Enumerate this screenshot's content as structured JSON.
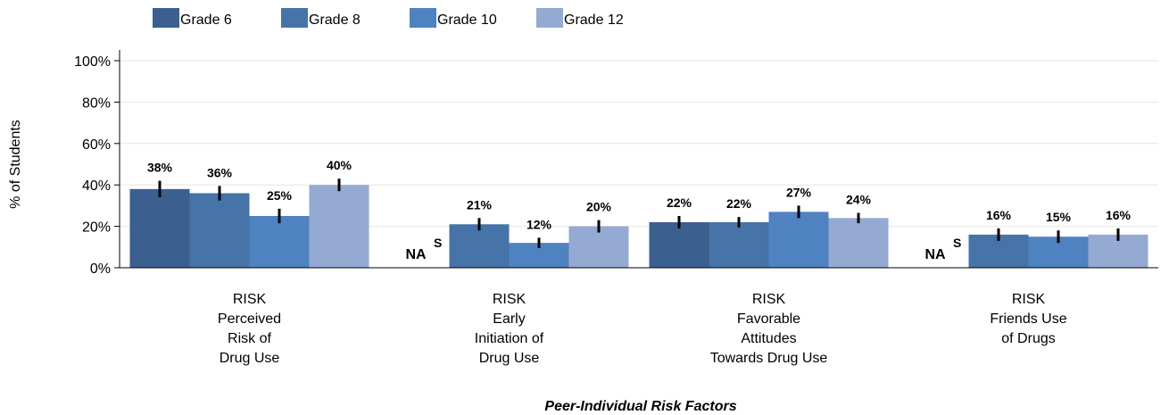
{
  "chart_data": {
    "type": "bar",
    "categories": [
      [
        "RISK",
        "Perceived",
        "Risk of",
        "Drug Use"
      ],
      [
        "RISK",
        "Early",
        "Initiation of",
        "Drug Use"
      ],
      [
        "RISK",
        "Favorable",
        "Attitudes",
        "Towards Drug Use"
      ],
      [
        "RISK",
        "Friends Use",
        "of Drugs"
      ]
    ],
    "series": [
      {
        "name": "Grade 6",
        "color": "#3b5f8f",
        "values": [
          38,
          null,
          22,
          null
        ],
        "errors": [
          4,
          null,
          3,
          null
        ],
        "labels": [
          "38%",
          "NA",
          "22%",
          "NA"
        ]
      },
      {
        "name": "Grade 8",
        "color": "#4673a8",
        "values": [
          36,
          21,
          22,
          16
        ],
        "errors": [
          3.5,
          3,
          2.5,
          3
        ],
        "labels": [
          "36%",
          "21%",
          "22%",
          "16%"
        ]
      },
      {
        "name": "Grade 10",
        "color": "#4f82c0",
        "values": [
          25,
          12,
          27,
          15
        ],
        "errors": [
          3.5,
          2.5,
          3,
          3
        ],
        "labels": [
          "25%",
          "12%",
          "27%",
          "15%"
        ]
      },
      {
        "name": "Grade 12",
        "color": "#94aad3",
        "values": [
          40,
          20,
          24,
          16
        ],
        "errors": [
          3,
          3,
          2.5,
          3
        ],
        "labels": [
          "40%",
          "20%",
          "24%",
          "16%"
        ]
      }
    ],
    "na_markers": [
      {
        "category": 1,
        "text": "NA",
        "superscript": "S"
      },
      {
        "category": 3,
        "text": "NA",
        "superscript": "S"
      }
    ],
    "yticks": [
      "0%",
      "20%",
      "40%",
      "60%",
      "80%",
      "100%"
    ],
    "ylim": [
      0,
      100
    ],
    "ylabel": "% of Students",
    "xlabel": "Peer-Individual Risk Factors",
    "grid": true,
    "legend_position": "top-left"
  }
}
